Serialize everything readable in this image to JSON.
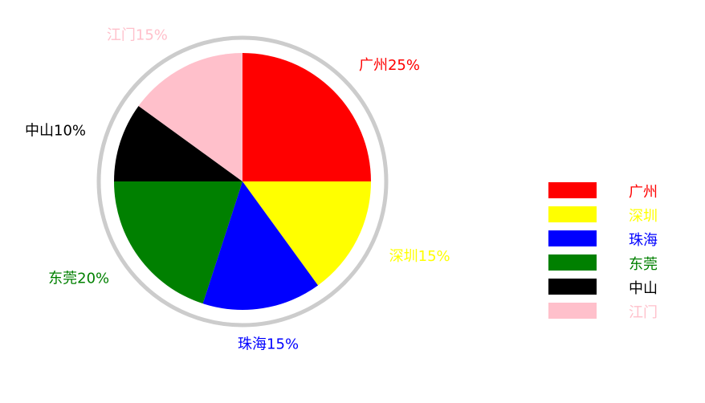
{
  "chart_data": {
    "type": "pie",
    "title": "",
    "slices": [
      {
        "name": "广州",
        "value": 25,
        "color": "#ff0000",
        "label": "广州25%"
      },
      {
        "name": "深圳",
        "value": 15,
        "color": "#ffff00",
        "label": "深圳15%"
      },
      {
        "name": "珠海",
        "value": 15,
        "color": "#0000ff",
        "label": "珠海15%"
      },
      {
        "name": "东莞",
        "value": 20,
        "color": "#008000",
        "label": "东莞20%"
      },
      {
        "name": "中山",
        "value": 10,
        "color": "#000000",
        "label": "中山10%"
      },
      {
        "name": "江门",
        "value": 15,
        "color": "#ffc0cb",
        "label": "江门15%"
      }
    ],
    "outline_color": "#cccccc",
    "legend_position": "right"
  }
}
